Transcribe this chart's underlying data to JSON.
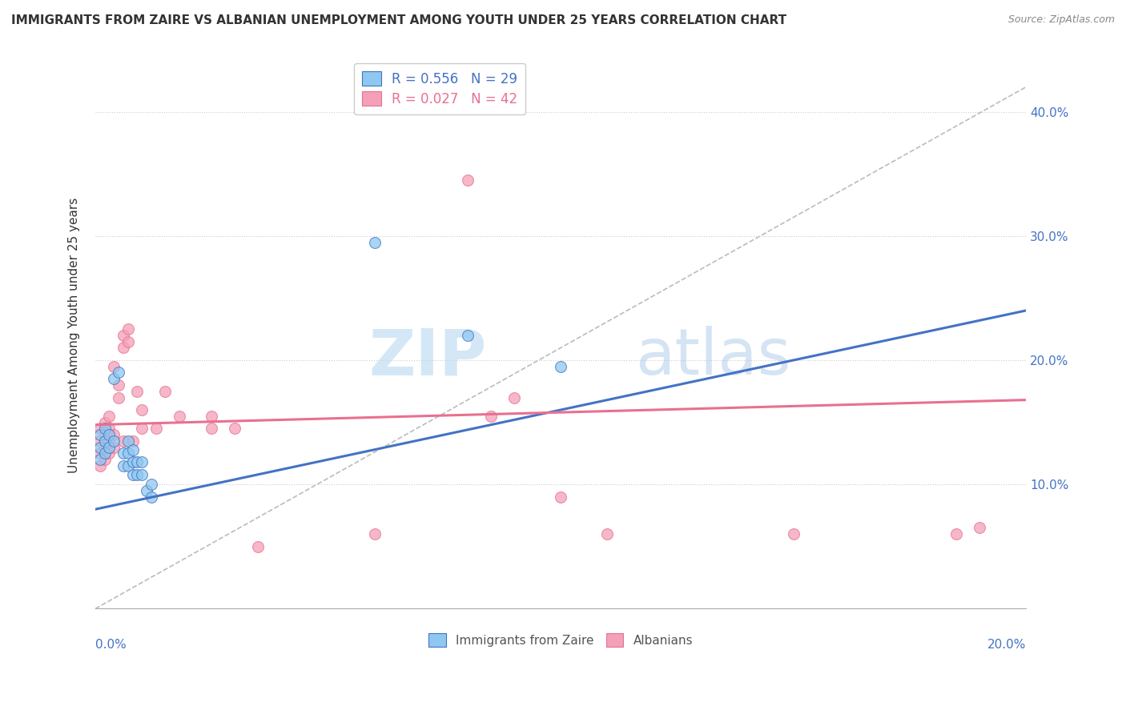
{
  "title": "IMMIGRANTS FROM ZAIRE VS ALBANIAN UNEMPLOYMENT AMONG YOUTH UNDER 25 YEARS CORRELATION CHART",
  "source": "Source: ZipAtlas.com",
  "ylabel": "Unemployment Among Youth under 25 years",
  "watermark_zip": "ZIP",
  "watermark_atlas": "atlas",
  "legend1_label": "R = 0.556   N = 29",
  "legend2_label": "R = 0.027   N = 42",
  "legend_bottom1": "Immigrants from Zaire",
  "legend_bottom2": "Albanians",
  "blue_scatter": [
    [
      0.001,
      0.12
    ],
    [
      0.001,
      0.13
    ],
    [
      0.001,
      0.14
    ],
    [
      0.002,
      0.125
    ],
    [
      0.002,
      0.135
    ],
    [
      0.002,
      0.145
    ],
    [
      0.003,
      0.13
    ],
    [
      0.003,
      0.14
    ],
    [
      0.004,
      0.135
    ],
    [
      0.004,
      0.185
    ],
    [
      0.005,
      0.19
    ],
    [
      0.006,
      0.115
    ],
    [
      0.006,
      0.125
    ],
    [
      0.007,
      0.115
    ],
    [
      0.007,
      0.125
    ],
    [
      0.007,
      0.135
    ],
    [
      0.008,
      0.108
    ],
    [
      0.008,
      0.118
    ],
    [
      0.008,
      0.128
    ],
    [
      0.009,
      0.108
    ],
    [
      0.009,
      0.118
    ],
    [
      0.01,
      0.108
    ],
    [
      0.01,
      0.118
    ],
    [
      0.011,
      0.095
    ],
    [
      0.012,
      0.09
    ],
    [
      0.012,
      0.1
    ],
    [
      0.06,
      0.295
    ],
    [
      0.08,
      0.22
    ],
    [
      0.1,
      0.195
    ]
  ],
  "pink_scatter": [
    [
      0.001,
      0.115
    ],
    [
      0.001,
      0.125
    ],
    [
      0.001,
      0.135
    ],
    [
      0.001,
      0.145
    ],
    [
      0.002,
      0.12
    ],
    [
      0.002,
      0.13
    ],
    [
      0.002,
      0.14
    ],
    [
      0.002,
      0.15
    ],
    [
      0.003,
      0.125
    ],
    [
      0.003,
      0.135
    ],
    [
      0.003,
      0.145
    ],
    [
      0.003,
      0.155
    ],
    [
      0.004,
      0.13
    ],
    [
      0.004,
      0.14
    ],
    [
      0.004,
      0.195
    ],
    [
      0.005,
      0.17
    ],
    [
      0.005,
      0.18
    ],
    [
      0.006,
      0.135
    ],
    [
      0.006,
      0.21
    ],
    [
      0.006,
      0.22
    ],
    [
      0.007,
      0.215
    ],
    [
      0.007,
      0.225
    ],
    [
      0.008,
      0.135
    ],
    [
      0.009,
      0.175
    ],
    [
      0.01,
      0.145
    ],
    [
      0.01,
      0.16
    ],
    [
      0.013,
      0.145
    ],
    [
      0.015,
      0.175
    ],
    [
      0.018,
      0.155
    ],
    [
      0.025,
      0.145
    ],
    [
      0.025,
      0.155
    ],
    [
      0.03,
      0.145
    ],
    [
      0.035,
      0.05
    ],
    [
      0.06,
      0.06
    ],
    [
      0.08,
      0.345
    ],
    [
      0.085,
      0.155
    ],
    [
      0.09,
      0.17
    ],
    [
      0.1,
      0.09
    ],
    [
      0.11,
      0.06
    ],
    [
      0.15,
      0.06
    ],
    [
      0.185,
      0.06
    ],
    [
      0.19,
      0.065
    ]
  ],
  "blue_line_x": [
    0.0,
    0.2
  ],
  "blue_line_y": [
    0.08,
    0.24
  ],
  "pink_line_x": [
    0.0,
    0.2
  ],
  "pink_line_y": [
    0.148,
    0.168
  ],
  "ref_line_x": [
    0.0,
    0.2
  ],
  "ref_line_y": [
    0.0,
    0.42
  ],
  "xlim": [
    0.0,
    0.2
  ],
  "ylim": [
    0.0,
    0.44
  ],
  "yticks": [
    0.0,
    0.1,
    0.2,
    0.3,
    0.4
  ],
  "ytick_labels": [
    "",
    "10.0%",
    "20.0%",
    "30.0%",
    "40.0%"
  ],
  "blue_color": "#8EC8F0",
  "pink_color": "#F4A0B8",
  "blue_line_color": "#4472C4",
  "pink_line_color": "#E87090",
  "ref_line_color": "#BBBBBB",
  "background_color": "#FFFFFF",
  "title_fontsize": 11,
  "source_fontsize": 9
}
